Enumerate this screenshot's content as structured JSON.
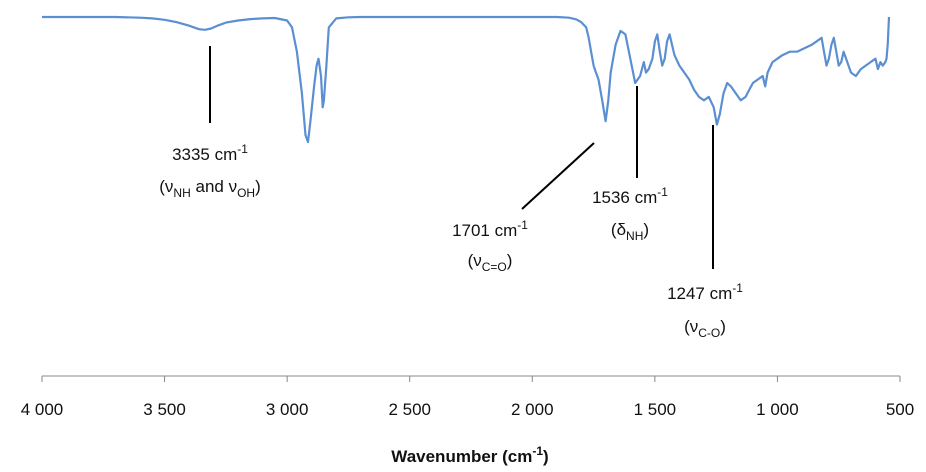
{
  "chart_data": {
    "type": "line",
    "xlabel": "Wavenumber (cm",
    "xlabel_sup": "-1",
    "xlabel_close": ")",
    "xlim": [
      4000,
      500
    ],
    "x_reversed": true,
    "y_axis_visible": false,
    "grid": false,
    "line_color": "#5b8fd2",
    "x_ticks": [
      {
        "value": 4000,
        "label": "4 000"
      },
      {
        "value": 3500,
        "label": "3 500"
      },
      {
        "value": 3000,
        "label": "3 000"
      },
      {
        "value": 2500,
        "label": "2 500"
      },
      {
        "value": 2000,
        "label": "2 000"
      },
      {
        "value": 1500,
        "label": "1 500"
      },
      {
        "value": 1000,
        "label": "1 000"
      },
      {
        "value": 500,
        "label": "500"
      }
    ],
    "series": [
      {
        "x": [
          4000,
          3900,
          3800,
          3700,
          3600,
          3550,
          3500,
          3450,
          3400,
          3360,
          3335,
          3310,
          3280,
          3250,
          3200,
          3150,
          3100,
          3050,
          3000,
          2980,
          2960,
          2940,
          2925,
          2915,
          2905,
          2890,
          2880,
          2872,
          2862,
          2855,
          2850,
          2840,
          2830,
          2800,
          2750,
          2700,
          2600,
          2500,
          2400,
          2300,
          2200,
          2100,
          2000,
          1900,
          1850,
          1820,
          1800,
          1780,
          1770,
          1760,
          1750,
          1740,
          1730,
          1715,
          1701,
          1690,
          1680,
          1660,
          1640,
          1620,
          1600,
          1580,
          1560,
          1545,
          1536,
          1525,
          1510,
          1500,
          1490,
          1480,
          1470,
          1460,
          1450,
          1440,
          1430,
          1420,
          1400,
          1380,
          1360,
          1340,
          1320,
          1300,
          1280,
          1260,
          1247,
          1235,
          1220,
          1205,
          1190,
          1170,
          1150,
          1130,
          1115,
          1100,
          1080,
          1060,
          1050,
          1040,
          1020,
          1000,
          980,
          950,
          920,
          890,
          860,
          840,
          820,
          810,
          800,
          790,
          780,
          770,
          760,
          750,
          740,
          730,
          720,
          700,
          680,
          660,
          640,
          620,
          600,
          590,
          580,
          570,
          560,
          555,
          550,
          545
        ],
        "y": [
          100,
          100,
          100,
          100,
          99.8,
          99.6,
          99.2,
          98.5,
          97.5,
          96.5,
          96.3,
          96.7,
          97.6,
          98.4,
          99,
          99.4,
          99.6,
          99.7,
          99,
          97,
          90,
          78,
          66,
          64,
          70,
          80,
          86,
          88,
          83,
          74,
          76,
          86,
          97,
          99.6,
          99.9,
          100,
          100,
          100,
          100,
          100,
          100,
          100,
          100,
          100,
          99.8,
          99.3,
          98.5,
          97,
          94,
          90,
          86,
          84,
          82,
          76,
          70,
          76,
          84,
          92,
          96,
          95,
          88,
          81,
          83,
          87,
          84,
          85,
          88,
          93,
          95,
          90,
          86,
          88,
          93,
          95,
          92,
          89,
          86,
          84,
          82,
          79,
          77,
          76,
          77,
          74,
          69,
          72,
          78,
          81,
          80,
          78,
          76,
          77,
          79,
          81,
          82,
          83,
          80,
          84,
          87,
          88,
          89,
          90,
          90,
          91,
          92,
          93,
          94,
          90,
          86,
          88,
          92,
          94,
          90,
          86,
          87,
          90,
          88,
          84,
          83,
          85,
          86,
          87,
          88,
          85,
          87,
          86,
          87,
          88,
          92,
          100
        ]
      }
    ],
    "annotations": [
      {
        "x": 3335,
        "label_num": "3335 cm",
        "label_sup": "-1",
        "label2_pre": "(ν",
        "label2_sub1": "NH",
        "label2_mid": " and ν",
        "label2_sub2": "OH",
        "label2_post": ")"
      },
      {
        "x": 1701,
        "label_num": "1701 cm",
        "label_sup": "-1",
        "label2_pre": "(ν",
        "label2_sub1": "C=O",
        "label2_post": ")"
      },
      {
        "x": 1536,
        "label_num": "1536 cm",
        "label_sup": "-1",
        "label2_pre": "(δ",
        "label2_sub1": "NH",
        "label2_post": ")"
      },
      {
        "x": 1247,
        "label_num": "1247 cm",
        "label_sup": "-1",
        "label2_pre": "(ν",
        "label2_sub1": "C-O",
        "label2_post": ")"
      }
    ]
  }
}
